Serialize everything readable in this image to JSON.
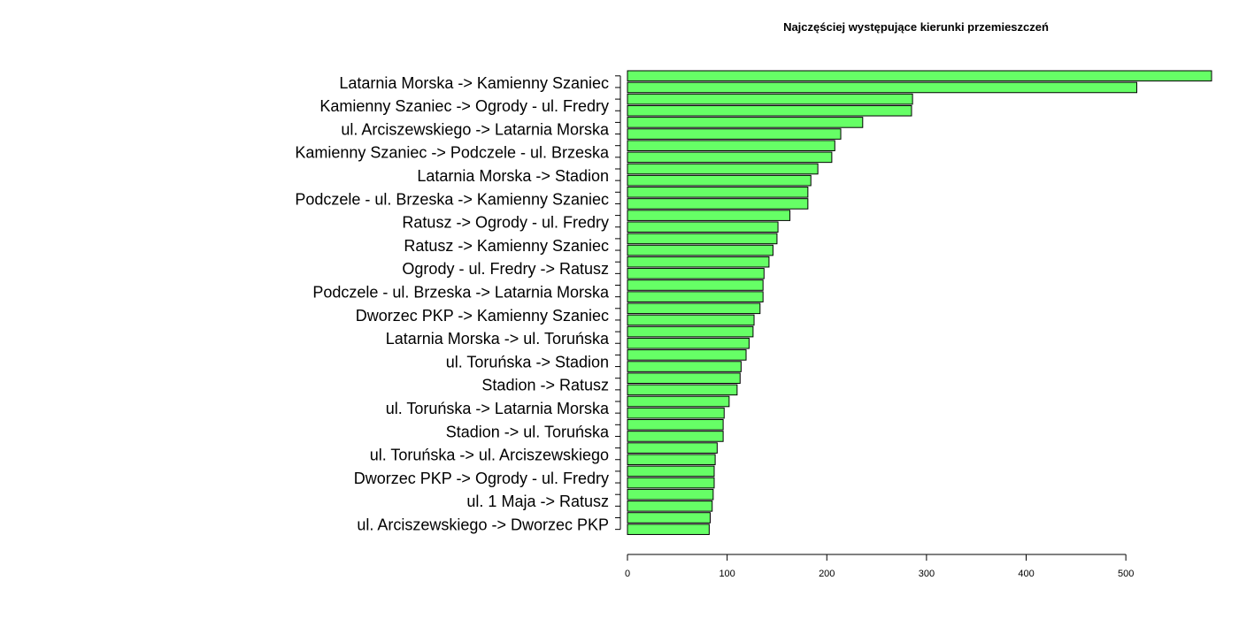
{
  "chart_data": {
    "type": "bar",
    "orientation": "horizontal",
    "title": "Najczęściej występujące kierunki przemieszczeń",
    "xlabel": "",
    "ylabel": "",
    "bar_color": "#66FF66",
    "bar_border_color": "#000000",
    "xlim": [
      0,
      586
    ],
    "x_ticks": [
      0,
      100,
      200,
      300,
      400,
      500
    ],
    "grid": false,
    "legend": "none",
    "categories": [
      "Latarnia Morska -> Kamienny Szaniec",
      "",
      "Kamienny Szaniec -> Ogrody - ul. Fredry",
      "",
      "ul. Arciszewskiego -> Latarnia Morska",
      "",
      "Kamienny Szaniec -> Podczele - ul. Brzeska",
      "",
      "Latarnia Morska -> Stadion",
      "",
      "Podczele - ul. Brzeska -> Kamienny Szaniec",
      "",
      "Ratusz -> Ogrody - ul. Fredry",
      "",
      "Ratusz -> Kamienny Szaniec",
      "",
      "Ogrody - ul. Fredry -> Ratusz",
      "",
      "Podczele - ul. Brzeska -> Latarnia Morska",
      "",
      "Dworzec PKP -> Kamienny Szaniec",
      "",
      "Latarnia Morska -> ul. Toruńska",
      "",
      "ul. Toruńska -> Stadion",
      "",
      "Stadion -> Ratusz",
      "",
      "ul. Toruńska -> Latarnia Morska",
      "",
      "Stadion -> ul. Toruńska",
      "",
      "ul. Toruńska -> ul. Arciszewskiego",
      "",
      "Dworzec PKP -> Ogrody - ul. Fredry",
      "",
      "ul. 1 Maja -> Ratusz",
      "",
      "ul. Arciszewskiego -> Dworzec PKP",
      ""
    ],
    "values": [
      586,
      511,
      286,
      285,
      236,
      214,
      208,
      205,
      191,
      184,
      181,
      181,
      163,
      151,
      150,
      146,
      142,
      137,
      136,
      136,
      133,
      127,
      126,
      122,
      119,
      114,
      113,
      110,
      102,
      97,
      96,
      96,
      90,
      88,
      87,
      87,
      86,
      85,
      83,
      82
    ]
  }
}
